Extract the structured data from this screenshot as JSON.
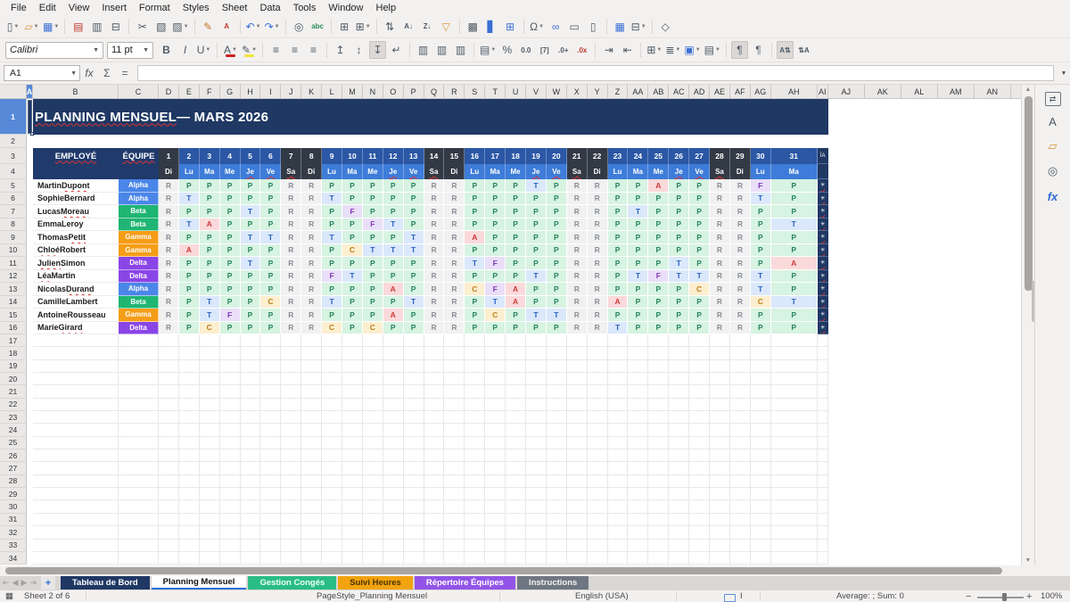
{
  "menubar": [
    "File",
    "Edit",
    "View",
    "Insert",
    "Format",
    "Styles",
    "Sheet",
    "Data",
    "Tools",
    "Window",
    "Help"
  ],
  "toolbar1": [
    {
      "name": "new-document",
      "glyph": "▯",
      "drop": true
    },
    {
      "name": "open",
      "glyph": "▱",
      "tint": "#DA9A3C",
      "drop": true
    },
    {
      "name": "save",
      "glyph": "▦",
      "tint": "#3B6FD4",
      "drop": true
    },
    {
      "sep": true
    },
    {
      "name": "export-pdf",
      "glyph": "▤",
      "tint": "#C0392B"
    },
    {
      "name": "print",
      "glyph": "▥"
    },
    {
      "name": "print-preview",
      "glyph": "⊟"
    },
    {
      "sep": true
    },
    {
      "name": "cut",
      "glyph": "✂"
    },
    {
      "name": "copy",
      "glyph": "▧"
    },
    {
      "name": "paste",
      "glyph": "▨",
      "drop": true
    },
    {
      "sep": true
    },
    {
      "name": "clone-formatting",
      "glyph": "✎",
      "tint": "#C47B2A"
    },
    {
      "name": "clear-formatting",
      "glyph": "A",
      "tint": "#C0392B",
      "small": true
    },
    {
      "sep": true
    },
    {
      "name": "undo",
      "glyph": "↶",
      "tint": "#3B6FD4",
      "drop": true
    },
    {
      "name": "redo",
      "glyph": "↷",
      "tint": "#3B6FD4",
      "drop": true
    },
    {
      "sep": true
    },
    {
      "name": "find-replace",
      "glyph": "◎"
    },
    {
      "name": "spelling",
      "glyph": "abc",
      "small": true,
      "tint": "#2E8B57"
    },
    {
      "sep": true
    },
    {
      "name": "insert-row",
      "glyph": "⊞"
    },
    {
      "name": "insert-column",
      "glyph": "⊞",
      "drop": true
    },
    {
      "sep": true
    },
    {
      "name": "sort",
      "glyph": "⇅"
    },
    {
      "name": "sort-ascending",
      "glyph": "A↓",
      "small": true
    },
    {
      "name": "sort-descending",
      "glyph": "Z↓",
      "small": true
    },
    {
      "name": "autofilter",
      "glyph": "▽",
      "tint": "#DA9A3C"
    },
    {
      "sep": true
    },
    {
      "name": "insert-image",
      "glyph": "▩"
    },
    {
      "name": "insert-chart",
      "glyph": "▋",
      "tint": "#3B6FD4"
    },
    {
      "name": "pivot-table",
      "glyph": "⊞",
      "tint": "#3B6FD4"
    },
    {
      "sep": true
    },
    {
      "name": "special-character",
      "glyph": "Ω",
      "drop": true
    },
    {
      "name": "hyperlink",
      "glyph": "∞",
      "tint": "#3B6FD4"
    },
    {
      "name": "comment",
      "glyph": "▭"
    },
    {
      "name": "headers-footers",
      "glyph": "▯"
    },
    {
      "sep": true
    },
    {
      "name": "freeze-panes",
      "glyph": "▦",
      "tint": "#3B6FD4"
    },
    {
      "name": "split-window",
      "glyph": "⊟",
      "drop": true
    },
    {
      "sep": true
    },
    {
      "name": "show-draw-functions",
      "glyph": "◇"
    }
  ],
  "toolbar2": {
    "font_name": "Calibri",
    "font_size": "11 pt",
    "items": [
      {
        "name": "bold",
        "glyph": "B",
        "bold": true
      },
      {
        "name": "italic",
        "glyph": "I",
        "italic": true
      },
      {
        "name": "underline",
        "glyph": "U",
        "drop": true
      },
      {
        "sep": true
      },
      {
        "name": "font-color",
        "glyph": "A",
        "bar": "#CC2222",
        "drop": true
      },
      {
        "name": "highlight-color",
        "glyph": "✎",
        "bar": "#F2E43A",
        "drop": true
      },
      {
        "sep": true
      },
      {
        "name": "align-left",
        "glyph": "≡"
      },
      {
        "name": "align-center",
        "glyph": "≡"
      },
      {
        "name": "align-right",
        "glyph": "≡"
      },
      {
        "sep": true
      },
      {
        "name": "align-top",
        "glyph": "↥"
      },
      {
        "name": "center-vertically",
        "glyph": "↕"
      },
      {
        "name": "align-bottom",
        "glyph": "↧",
        "pressed": true
      },
      {
        "name": "wrap-text",
        "glyph": "↵"
      },
      {
        "sep": true
      },
      {
        "name": "merge-cells",
        "glyph": "▥"
      },
      {
        "name": "merge-and-center",
        "glyph": "▥"
      },
      {
        "name": "unmerge-cells",
        "glyph": "▥"
      },
      {
        "sep": true
      },
      {
        "name": "format-currency",
        "glyph": "▤",
        "drop": true
      },
      {
        "name": "format-percent",
        "glyph": "%"
      },
      {
        "name": "format-number",
        "glyph": "0.0",
        "small": true
      },
      {
        "name": "format-date",
        "glyph": "[7]",
        "small": true
      },
      {
        "name": "add-decimal",
        "glyph": ".0+",
        "small": true
      },
      {
        "name": "delete-decimal",
        "glyph": ".0x",
        "small": true,
        "tint": "#C0392B"
      },
      {
        "sep": true
      },
      {
        "name": "increase-indent",
        "glyph": "⇥"
      },
      {
        "name": "decrease-indent",
        "glyph": "⇤"
      },
      {
        "sep": true
      },
      {
        "name": "borders",
        "glyph": "⊞",
        "drop": true
      },
      {
        "name": "border-style",
        "glyph": "≣",
        "drop": true
      },
      {
        "name": "background-color",
        "glyph": "▣",
        "tint": "#3B6FD4",
        "drop": true
      },
      {
        "name": "conditional-formatting",
        "glyph": "▤",
        "drop": true
      },
      {
        "sep": true
      },
      {
        "name": "text-direction-ltr",
        "glyph": "¶",
        "pressed": true
      },
      {
        "name": "text-direction-ttb",
        "glyph": "¶"
      },
      {
        "sep": true
      },
      {
        "name": "text-rotate-up",
        "glyph": "A⇅",
        "small": true,
        "pressed": true
      },
      {
        "name": "text-rotate-down",
        "glyph": "⇅A",
        "small": true
      }
    ]
  },
  "formula_bar": {
    "cell_ref": "A1",
    "icons": [
      {
        "name": "function-wizard",
        "glyph": "fx"
      },
      {
        "name": "select-function",
        "glyph": "Σ"
      },
      {
        "name": "formula",
        "glyph": "="
      }
    ]
  },
  "grid": {
    "col_letters": [
      "A",
      "B",
      "C",
      "D",
      "E",
      "F",
      "G",
      "H",
      "I",
      "J",
      "K",
      "L",
      "M",
      "N",
      "O",
      "P",
      "Q",
      "R",
      "S",
      "T",
      "U",
      "V",
      "W",
      "X",
      "Y",
      "Z",
      "AA",
      "AB",
      "AC",
      "AD",
      "AE",
      "AF",
      "AG",
      "AH",
      "AI",
      "AJ",
      "AK",
      "AL",
      "AM",
      "AN"
    ],
    "row_count": 34,
    "selected_cell": "A1",
    "selected_col": "A",
    "selected_row": "1"
  },
  "sheet": {
    "title": "PLANNING MENSUEL — MARS 2026",
    "title_sq": "PLANNING MENSUEL",
    "employee_header": "EMPLOYÉ",
    "team_header": "ÉQUIPE",
    "week": [
      "Di",
      "Lu",
      "Ma",
      "Me",
      "Je",
      "Ve",
      "Sa"
    ],
    "sq_days": [
      "Je",
      "Ve",
      "Sa"
    ],
    "num_days": 31,
    "total_col": {
      "header_clipped": "ÍA",
      "cell_glyph": "✳"
    },
    "team_colors": {
      "Alpha": "#4A86E8",
      "Beta": "#1FB573",
      "Gamma": "#F59D17",
      "Delta": "#8A45E6"
    },
    "code_styles": {
      "R": {
        "bg": "#F1F1F1",
        "fg": "#8A8F98"
      },
      "P": {
        "bg": "#D7F3E1",
        "fg": "#27865B"
      },
      "T": {
        "bg": "#DBE8FB",
        "fg": "#2B5FC0"
      },
      "F": {
        "bg": "#E9DFF8",
        "fg": "#8238B8"
      },
      "A": {
        "bg": "#FAD9DA",
        "fg": "#CC3B3B"
      },
      "C": {
        "bg": "#FCEFD0",
        "fg": "#BE7C17"
      }
    },
    "employees": [
      {
        "name": "Martin Dupont",
        "sq": "Dupont",
        "team": "Alpha",
        "codes": "RPPPPPRRPPPPPRRPPPTPRRPPAPPRRFP"
      },
      {
        "name": "Sophie Bernard",
        "sq": "",
        "team": "Alpha",
        "codes": "RTPPPPRRTPPPPRRPPPPPRRPPPPPRRTP"
      },
      {
        "name": "Lucas Moreau",
        "sq": "Moreau",
        "team": "Beta",
        "codes": "RPPPTPRRPFPPPRRPPPPPRRPTPPPRRPP"
      },
      {
        "name": "Emma Leroy",
        "sq": "",
        "team": "Beta",
        "codes": "RTAPPPRRPPFTPRRPPPPPRRPPPPPRRPT"
      },
      {
        "name": "Thomas Petit",
        "sq": "Petit",
        "team": "Gamma",
        "codes": "RPPPTTRRTPPPTRRAPPPPRRPPPPPRRPP"
      },
      {
        "name": "Chloé Robert",
        "sq": "Chloé",
        "team": "Gamma",
        "codes": "RAPPPPRRPCTTTRRPPPPPRRPPPPPRRPP"
      },
      {
        "name": "Julien Simon",
        "sq": "Julien",
        "team": "Delta",
        "codes": "RPPPTPRRPPPPPRRTFPPPRRPPPTPRRPA"
      },
      {
        "name": "Léa Martin",
        "sq": "Léa",
        "team": "Delta",
        "codes": "RPPPPPRRFTPPPRRPPPTPRRPTFTTRRTP"
      },
      {
        "name": "Nicolas Durand",
        "sq": "Durand",
        "team": "Alpha",
        "codes": "RPPPPPRRPPPAPRRCFAPPRRPPPPCRRTP"
      },
      {
        "name": "Camille Lambert",
        "sq": "",
        "team": "Beta",
        "codes": "RPTPPCRRTPPPTRRPTAPPRRAPPPPRRCT"
      },
      {
        "name": "Antoine Rousseau",
        "sq": "",
        "team": "Gamma",
        "codes": "RPTFPPRRPPPAPRRPCPTTRRPPPPPRRPP"
      },
      {
        "name": "Marie Girard",
        "sq": "Girard",
        "team": "Delta",
        "codes": "RPCPPPRRCPCPPRRPPPPPRRTPPPPRRPP"
      }
    ]
  },
  "sidebar": [
    {
      "name": "sidebar-settings",
      "glyph": "⇄",
      "cls": "settings"
    },
    {
      "name": "styles",
      "glyph": "A",
      "cls": ""
    },
    {
      "name": "gallery",
      "glyph": "▱",
      "cls": "gallery"
    },
    {
      "name": "navigator",
      "glyph": "◎",
      "cls": ""
    },
    {
      "name": "functions",
      "glyph": "fx",
      "cls": "fx"
    }
  ],
  "tabbar": {
    "nav": [
      {
        "name": "first-sheet",
        "glyph": "⇤"
      },
      {
        "name": "previous-sheet",
        "glyph": "◀"
      },
      {
        "name": "next-sheet",
        "glyph": "▶"
      },
      {
        "name": "last-sheet",
        "glyph": "⇥"
      }
    ],
    "add_label": "+",
    "tabs": [
      {
        "label": "Tableau de Bord",
        "bg": "#1F3864",
        "fg": "#FFFFFF",
        "active": false
      },
      {
        "label": "Planning Mensuel",
        "bg": "#FFFFFF",
        "fg": "#111111",
        "active": true
      },
      {
        "label": "Gestion Congés",
        "bg": "#29BD85",
        "fg": "#EFFFF8",
        "active": false
      },
      {
        "label": "Suivi Heures",
        "bg": "#F2A30F",
        "fg": "#4A3203",
        "active": false
      },
      {
        "label": "Répertoire Équipes",
        "bg": "#9254E8",
        "fg": "#FFFFFF",
        "active": false
      },
      {
        "label": "Instructions",
        "bg": "#6E7681",
        "fg": "#F2F2F2",
        "active": false
      }
    ]
  },
  "statusbar": {
    "sheet_label": "Sheet 2 of 6",
    "page_style": "PageStyle_Planning Mensuel",
    "language": "English (USA)",
    "avg_sum": "Average: ; Sum: 0",
    "zoom_percent": "100%"
  }
}
